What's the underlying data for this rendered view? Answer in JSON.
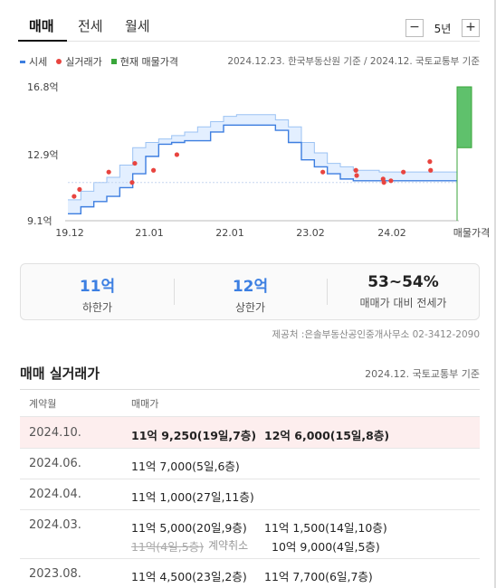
{
  "tabs": [
    {
      "label": "매매",
      "active": true
    },
    {
      "label": "전세",
      "active": false
    },
    {
      "label": "월세",
      "active": false
    }
  ],
  "period": {
    "minus": "−",
    "label": "5년",
    "plus": "+"
  },
  "legend": {
    "items": [
      {
        "label": "시세",
        "icon": "line-swatch",
        "color": "#3d7ee0"
      },
      {
        "label": "실거래가",
        "icon": "dot-swatch",
        "color": "#e8443f"
      },
      {
        "label": "현재 매물가격",
        "icon": "square-swatch",
        "color": "#39a63a"
      }
    ],
    "source": "2024.12.23. 한국부동산원 기준 / 2024.12. 국토교통부 기준"
  },
  "chart_data": {
    "type": "line",
    "y_ticks": [
      "16.8억",
      "12.9억",
      "9.1억"
    ],
    "y_tick_values": [
      16.8,
      12.9,
      9.1
    ],
    "x_ticks": [
      "19.12",
      "21.01",
      "22.01",
      "23.02",
      "24.02",
      "매물가격"
    ],
    "ylim": [
      9.1,
      16.8
    ],
    "series": [
      {
        "name": "시세",
        "band_low": [
          9.5,
          9.9,
          10.2,
          10.5,
          11.0,
          11.8,
          12.8,
          13.5,
          13.6,
          13.7,
          13.7,
          14.2,
          14.6,
          14.6,
          14.6,
          14.6,
          14.3,
          13.6,
          12.6,
          12.2,
          11.8,
          11.5,
          11.4,
          11.4,
          11.4,
          11.4,
          11.4,
          11.4,
          11.4,
          11.4
        ],
        "band_high": [
          10.3,
          10.8,
          11.3,
          11.6,
          12.3,
          13.3,
          13.6,
          13.8,
          14.0,
          14.2,
          14.5,
          14.8,
          15.1,
          15.2,
          15.2,
          15.2,
          14.9,
          14.5,
          13.6,
          13.0,
          12.4,
          12.2,
          12.0,
          12.0,
          11.9,
          11.9,
          11.9,
          11.9,
          11.9,
          11.9
        ]
      }
    ],
    "real_trades": [
      {
        "x": 0.16,
        "y": 10.5
      },
      {
        "x": 0.3,
        "y": 10.9
      },
      {
        "x": 1.05,
        "y": 11.9
      },
      {
        "x": 1.65,
        "y": 11.3
      },
      {
        "x": 1.72,
        "y": 12.4
      },
      {
        "x": 2.2,
        "y": 12.0
      },
      {
        "x": 2.8,
        "y": 12.9
      },
      {
        "x": 6.55,
        "y": 11.9
      },
      {
        "x": 7.4,
        "y": 12.0
      },
      {
        "x": 7.42,
        "y": 11.7
      },
      {
        "x": 8.1,
        "y": 11.5
      },
      {
        "x": 8.12,
        "y": 11.3
      },
      {
        "x": 8.3,
        "y": 11.4
      },
      {
        "x": 8.62,
        "y": 11.9
      },
      {
        "x": 9.3,
        "y": 12.5
      },
      {
        "x": 9.32,
        "y": 12.0
      }
    ],
    "listing_price_range": [
      13.3,
      16.8
    ],
    "avg_line": 11.3,
    "grid": false
  },
  "summary": [
    {
      "value": "11억",
      "label": "하한가",
      "accent": true
    },
    {
      "value": "12억",
      "label": "상한가",
      "accent": true
    },
    {
      "value": "53~54%",
      "label": "매매가 대비 전세가",
      "accent": false
    }
  ],
  "provider": "제공처 :은솔부동산공인중개사무소 02-3412-2090",
  "transactions": {
    "title": "매매 실거래가",
    "note": "2024.12. 국토교통부 기준",
    "headers": {
      "date": "계약월",
      "price": "매매가"
    },
    "rows": [
      {
        "date": "2024.10.",
        "line1a": "11억 9,250(19일,7층)",
        "line1b": "12억 6,000(15일,8층)",
        "highlight": true
      },
      {
        "date": "2024.06.",
        "line1a": "11억 7,000(5일,6층)",
        "line1b": ""
      },
      {
        "date": "2024.04.",
        "line1a": "11억 1,000(27일,11층)",
        "line1b": ""
      },
      {
        "date": "2024.03.",
        "line1a": "11억 5,000(20일,9층)",
        "line1b": "11억 1,500(14일,10층)",
        "line2a": "11억(4일,5층)",
        "line2a_tag": "계약취소",
        "line2b": "10억 9,000(4일,5층)"
      },
      {
        "date": "2023.08.",
        "line1a": "11억 4,500(23일,2층)",
        "line1b": "11억 7,700(6일,7층)"
      }
    ]
  }
}
